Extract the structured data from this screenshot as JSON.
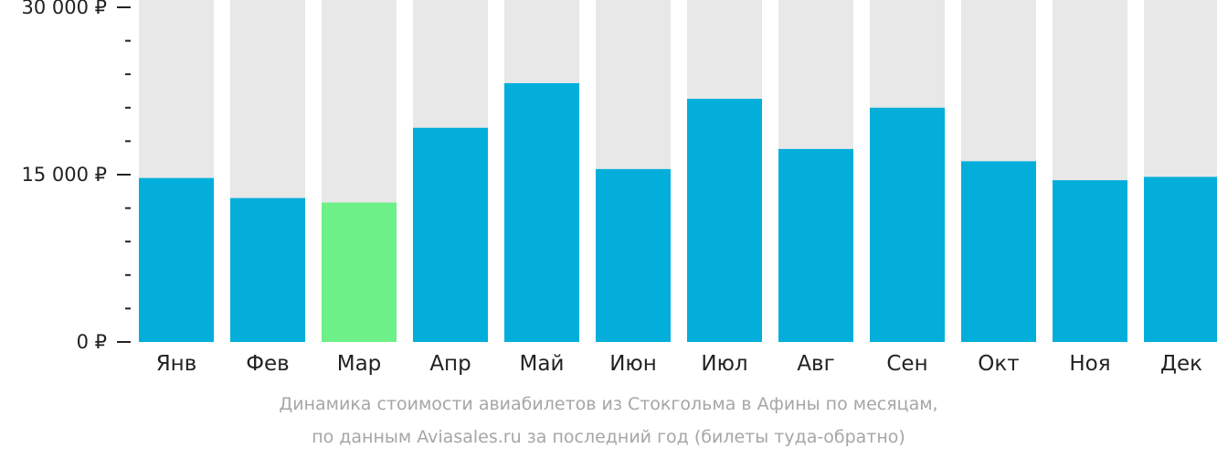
{
  "chart_data": {
    "type": "bar",
    "categories": [
      "Янв",
      "Фев",
      "Мар",
      "Апр",
      "Май",
      "Июн",
      "Июл",
      "Авг",
      "Сен",
      "Окт",
      "Ноя",
      "Дек"
    ],
    "values": [
      14700,
      12900,
      12500,
      19200,
      23200,
      15500,
      21800,
      17300,
      21000,
      16200,
      14500,
      14800
    ],
    "ylim": [
      0,
      30000
    ],
    "yticks": [
      0,
      15000,
      30000
    ],
    "ytick_labels": [
      "0 ₽",
      "15 000 ₽",
      "30 000 ₽"
    ],
    "minor_ticks_between_labels": 4,
    "highlight_index": 2,
    "colors": {
      "bar": "#03aedb",
      "highlight": "#6cf087",
      "track": "#e8e8e8",
      "axis_text": "#222222",
      "caption": "#a6a6a6"
    },
    "caption": [
      "Динамика стоимости авиабилетов из Стокгольма в Афины по месяцам,",
      "по данным Aviasales.ru за последний год (билеты туда-обратно)"
    ]
  }
}
